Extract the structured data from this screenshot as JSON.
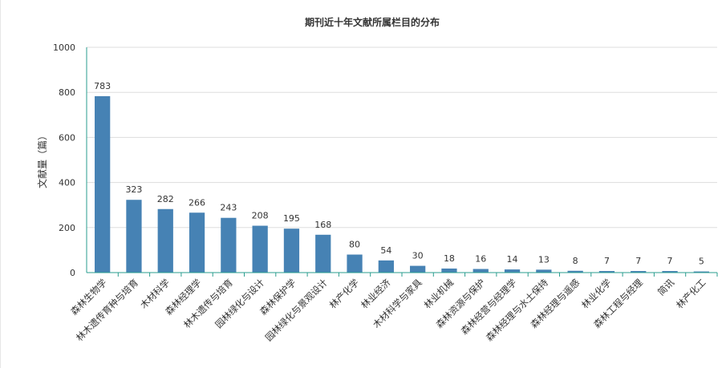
{
  "chart_data": {
    "type": "bar",
    "title": "期刊近十年文献所属栏目的分布",
    "ylabel": "文献量（篇）",
    "xlabel": "",
    "ylim": [
      0,
      1000
    ],
    "yticks": [
      0,
      200,
      400,
      600,
      800,
      1000
    ],
    "grid": true,
    "legend": "none",
    "bar_color": "#4682b4",
    "axis_color": "#2a9d8f",
    "categories": [
      "森林生物学",
      "林木遗传育种与培育",
      "木材科学",
      "森林经理学",
      "林木遗传与培育",
      "园林绿化与设计",
      "森林保护学",
      "园林绿化与景观设计",
      "林产化学",
      "林业经济",
      "木材科学与家具",
      "林业机械",
      "森林资源与保护",
      "森林经营与经理学",
      "森林经理与水土保持",
      "森林经理与遥感",
      "林业化学",
      "森林工程与经理",
      "简讯",
      "林产化工"
    ],
    "values": [
      783,
      323,
      282,
      266,
      243,
      208,
      195,
      168,
      80,
      54,
      30,
      18,
      16,
      14,
      13,
      8,
      7,
      7,
      7,
      5
    ]
  }
}
